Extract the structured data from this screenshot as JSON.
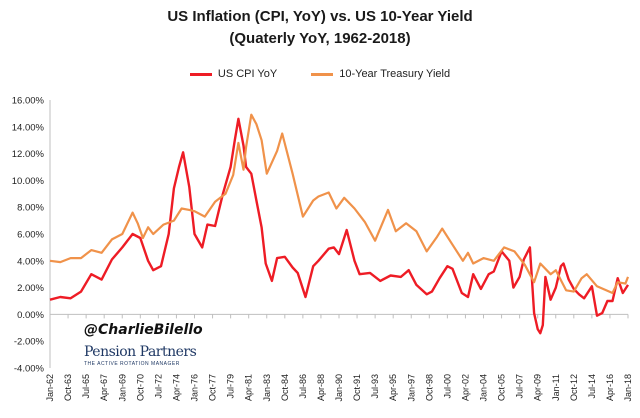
{
  "chart_data": {
    "type": "line",
    "title": "US Inflation (CPI, YoY) vs. US 10-Year Yield",
    "subtitle": "(Quaterly YoY, 1962-2018)",
    "xlabel": "",
    "ylabel": "",
    "ylim": [
      -4,
      16
    ],
    "yticks": [
      "-4.00%",
      "-2.00%",
      "0.00%",
      "2.00%",
      "4.00%",
      "6.00%",
      "8.00%",
      "10.00%",
      "12.00%",
      "14.00%",
      "16.00%"
    ],
    "x_range": [
      1962.0,
      2018.0
    ],
    "xticks": [
      "Jan-62",
      "Oct-63",
      "Jul-65",
      "Apr-67",
      "Jan-69",
      "Oct-70",
      "Jul-72",
      "Apr-74",
      "Jan-76",
      "Oct-77",
      "Jul-79",
      "Apr-81",
      "Jan-83",
      "Oct-84",
      "Jul-86",
      "Apr-88",
      "Jan-90",
      "Oct-91",
      "Jul-93",
      "Apr-95",
      "Jan-97",
      "Oct-98",
      "Jul-00",
      "Apr-02",
      "Jan-04",
      "Oct-05",
      "Jul-07",
      "Apr-09",
      "Jan-11",
      "Oct-12",
      "Jul-14",
      "Apr-16",
      "Jan-18"
    ],
    "grid": false,
    "legend_position": "top-center",
    "series": [
      {
        "name": "US CPI YoY",
        "color": "#ee1c25",
        "points": [
          [
            1962.0,
            1.1
          ],
          [
            1963.0,
            1.3
          ],
          [
            1964.0,
            1.2
          ],
          [
            1965.0,
            1.7
          ],
          [
            1966.0,
            3.0
          ],
          [
            1967.0,
            2.6
          ],
          [
            1968.0,
            4.1
          ],
          [
            1969.0,
            5.0
          ],
          [
            1970.0,
            6.0
          ],
          [
            1970.75,
            5.7
          ],
          [
            1971.5,
            4.0
          ],
          [
            1972.0,
            3.3
          ],
          [
            1972.75,
            3.6
          ],
          [
            1973.5,
            6.0
          ],
          [
            1974.0,
            9.4
          ],
          [
            1974.5,
            11.0
          ],
          [
            1974.9,
            12.1
          ],
          [
            1975.5,
            9.5
          ],
          [
            1976.0,
            6.0
          ],
          [
            1976.75,
            5.0
          ],
          [
            1977.25,
            6.7
          ],
          [
            1978.0,
            6.6
          ],
          [
            1978.75,
            9.0
          ],
          [
            1979.5,
            11.0
          ],
          [
            1979.9,
            13.0
          ],
          [
            1980.25,
            14.6
          ],
          [
            1980.75,
            12.6
          ],
          [
            1981.0,
            11.0
          ],
          [
            1981.5,
            10.5
          ],
          [
            1982.0,
            8.5
          ],
          [
            1982.5,
            6.5
          ],
          [
            1982.9,
            3.8
          ],
          [
            1983.5,
            2.5
          ],
          [
            1984.0,
            4.2
          ],
          [
            1984.75,
            4.3
          ],
          [
            1985.5,
            3.5
          ],
          [
            1986.0,
            3.1
          ],
          [
            1986.75,
            1.3
          ],
          [
            1987.5,
            3.6
          ],
          [
            1988.0,
            4.0
          ],
          [
            1989.0,
            4.9
          ],
          [
            1989.5,
            5.0
          ],
          [
            1990.0,
            4.5
          ],
          [
            1990.75,
            6.3
          ],
          [
            1991.5,
            4.0
          ],
          [
            1992.0,
            3.0
          ],
          [
            1993.0,
            3.1
          ],
          [
            1994.0,
            2.5
          ],
          [
            1995.0,
            2.9
          ],
          [
            1996.0,
            2.8
          ],
          [
            1996.75,
            3.3
          ],
          [
            1997.5,
            2.2
          ],
          [
            1998.5,
            1.5
          ],
          [
            1999.0,
            1.7
          ],
          [
            1999.75,
            2.7
          ],
          [
            2000.5,
            3.6
          ],
          [
            2001.0,
            3.4
          ],
          [
            2001.9,
            1.6
          ],
          [
            2002.5,
            1.3
          ],
          [
            2003.0,
            3.0
          ],
          [
            2003.75,
            1.9
          ],
          [
            2004.5,
            3.0
          ],
          [
            2005.0,
            3.2
          ],
          [
            2005.75,
            4.7
          ],
          [
            2006.5,
            4.0
          ],
          [
            2006.9,
            2.0
          ],
          [
            2007.5,
            2.8
          ],
          [
            2007.9,
            4.1
          ],
          [
            2008.5,
            5.0
          ],
          [
            2008.9,
            0.1
          ],
          [
            2009.25,
            -1.1
          ],
          [
            2009.5,
            -1.4
          ],
          [
            2009.75,
            -0.8
          ],
          [
            2010.0,
            2.8
          ],
          [
            2010.5,
            1.1
          ],
          [
            2011.0,
            2.0
          ],
          [
            2011.5,
            3.6
          ],
          [
            2011.75,
            3.8
          ],
          [
            2012.25,
            2.6
          ],
          [
            2012.75,
            1.9
          ],
          [
            2013.25,
            1.5
          ],
          [
            2013.75,
            1.2
          ],
          [
            2014.5,
            2.1
          ],
          [
            2015.0,
            -0.1
          ],
          [
            2015.5,
            0.1
          ],
          [
            2016.0,
            1.0
          ],
          [
            2016.5,
            1.0
          ],
          [
            2017.0,
            2.7
          ],
          [
            2017.5,
            1.6
          ],
          [
            2018.0,
            2.2
          ]
        ]
      },
      {
        "name": "10-Year Treasury Yield",
        "color": "#f0924a",
        "points": [
          [
            1962.0,
            4.0
          ],
          [
            1963.0,
            3.9
          ],
          [
            1964.0,
            4.2
          ],
          [
            1965.0,
            4.2
          ],
          [
            1966.0,
            4.8
          ],
          [
            1967.0,
            4.6
          ],
          [
            1968.0,
            5.6
          ],
          [
            1969.0,
            6.0
          ],
          [
            1970.0,
            7.6
          ],
          [
            1970.5,
            6.8
          ],
          [
            1971.0,
            5.7
          ],
          [
            1971.5,
            6.5
          ],
          [
            1972.0,
            6.0
          ],
          [
            1973.0,
            6.7
          ],
          [
            1974.0,
            7.0
          ],
          [
            1974.75,
            7.9
          ],
          [
            1975.5,
            7.8
          ],
          [
            1976.0,
            7.7
          ],
          [
            1977.0,
            7.3
          ],
          [
            1978.0,
            8.4
          ],
          [
            1979.0,
            9.0
          ],
          [
            1979.75,
            10.4
          ],
          [
            1980.25,
            12.8
          ],
          [
            1980.75,
            10.8
          ],
          [
            1981.0,
            12.5
          ],
          [
            1981.5,
            14.9
          ],
          [
            1982.0,
            14.2
          ],
          [
            1982.5,
            13.0
          ],
          [
            1983.0,
            10.5
          ],
          [
            1984.0,
            12.2
          ],
          [
            1984.5,
            13.5
          ],
          [
            1985.5,
            10.5
          ],
          [
            1986.5,
            7.3
          ],
          [
            1987.5,
            8.5
          ],
          [
            1988.0,
            8.8
          ],
          [
            1989.0,
            9.1
          ],
          [
            1989.75,
            7.9
          ],
          [
            1990.5,
            8.7
          ],
          [
            1991.5,
            7.9
          ],
          [
            1992.5,
            6.9
          ],
          [
            1993.5,
            5.5
          ],
          [
            1994.75,
            7.8
          ],
          [
            1995.5,
            6.2
          ],
          [
            1996.5,
            6.8
          ],
          [
            1997.5,
            6.2
          ],
          [
            1998.5,
            4.7
          ],
          [
            1999.5,
            5.8
          ],
          [
            2000.0,
            6.4
          ],
          [
            2001.0,
            5.2
          ],
          [
            2002.0,
            4.0
          ],
          [
            2002.5,
            4.6
          ],
          [
            2003.0,
            3.8
          ],
          [
            2004.0,
            4.2
          ],
          [
            2005.0,
            4.0
          ],
          [
            2006.0,
            5.0
          ],
          [
            2007.0,
            4.7
          ],
          [
            2008.0,
            3.7
          ],
          [
            2008.9,
            2.4
          ],
          [
            2009.5,
            3.8
          ],
          [
            2010.5,
            3.0
          ],
          [
            2011.0,
            3.3
          ],
          [
            2012.0,
            1.8
          ],
          [
            2012.75,
            1.7
          ],
          [
            2013.5,
            2.7
          ],
          [
            2014.0,
            3.0
          ],
          [
            2015.0,
            2.1
          ],
          [
            2016.5,
            1.6
          ],
          [
            2017.0,
            2.4
          ],
          [
            2017.75,
            2.3
          ],
          [
            2018.0,
            2.8
          ]
        ]
      }
    ]
  },
  "watermark": {
    "handle": "@CharlieBilello",
    "brand": "Pension Partners",
    "brand_sub": "THE ACTIVE ROTATION MANAGER"
  }
}
